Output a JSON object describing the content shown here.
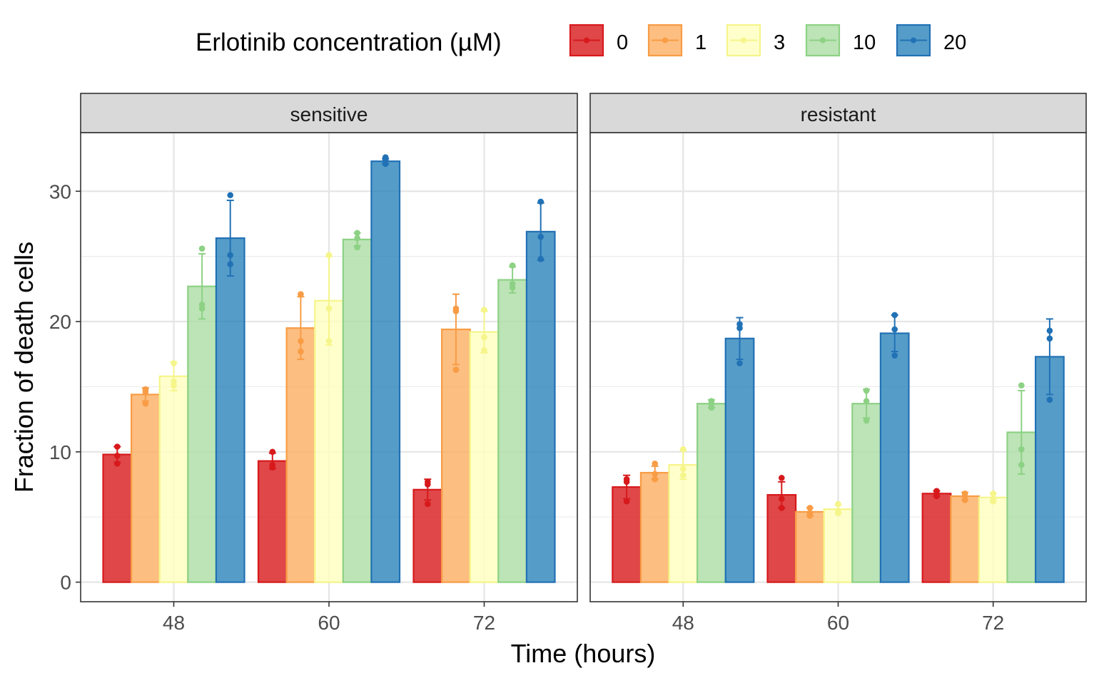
{
  "chart_data": {
    "type": "bar",
    "legend": {
      "title": "Erlotinib concentration (µM)",
      "position": "top",
      "entries": [
        "0",
        "1",
        "3",
        "10",
        "20"
      ]
    },
    "colors": [
      "#D7191C",
      "#FDAE61",
      "#FFFFBF",
      "#ABDDA4",
      "#2B83BA"
    ],
    "xlabel": "Time (hours)",
    "ylabel": "Fraction of death cells",
    "x_ticks": [
      "48",
      "60",
      "72"
    ],
    "y_ticks": [
      "0",
      "10",
      "20",
      "30"
    ],
    "ylim": [
      -1.5,
      34.5
    ],
    "grid": true,
    "panels": [
      {
        "label": "sensitive",
        "groups": [
          {
            "time": "48",
            "bars": [
              {
                "conc": "0",
                "mean": 9.8,
                "sd": 0.6,
                "points": [
                  10.4,
                  9.7,
                  9.1
                ]
              },
              {
                "conc": "1",
                "mean": 14.4,
                "sd": 0.5,
                "points": [
                  14.8,
                  14.6,
                  13.7
                ]
              },
              {
                "conc": "3",
                "mean": 15.8,
                "sd": 1.1,
                "points": [
                  16.8,
                  15.4,
                  15.1
                ]
              },
              {
                "conc": "10",
                "mean": 22.7,
                "sd": 2.5,
                "points": [
                  25.6,
                  21.3,
                  21.0
                ]
              },
              {
                "conc": "20",
                "mean": 26.4,
                "sd": 2.9,
                "points": [
                  29.7,
                  25.1,
                  24.4
                ]
              }
            ]
          },
          {
            "time": "60",
            "bars": [
              {
                "conc": "0",
                "mean": 9.3,
                "sd": 0.6,
                "points": [
                  10.0,
                  9.0,
                  8.8
                ]
              },
              {
                "conc": "1",
                "mean": 19.5,
                "sd": 2.4,
                "points": [
                  22.1,
                  18.5,
                  17.7
                ]
              },
              {
                "conc": "3",
                "mean": 21.6,
                "sd": 3.4,
                "points": [
                  25.1,
                  21.0,
                  18.5
                ]
              },
              {
                "conc": "10",
                "mean": 26.3,
                "sd": 0.5,
                "points": [
                  26.8,
                  26.4,
                  25.7
                ]
              },
              {
                "conc": "20",
                "mean": 32.3,
                "sd": 0.2,
                "points": [
                  32.6,
                  32.4,
                  32.1
                ]
              }
            ]
          },
          {
            "time": "72",
            "bars": [
              {
                "conc": "0",
                "mean": 7.1,
                "sd": 0.8,
                "points": [
                  7.7,
                  7.5,
                  6.0
                ]
              },
              {
                "conc": "1",
                "mean": 19.4,
                "sd": 2.7,
                "points": [
                  21.0,
                  20.8,
                  16.3
                ]
              },
              {
                "conc": "3",
                "mean": 19.2,
                "sd": 1.6,
                "points": [
                  20.9,
                  18.8,
                  17.8
                ]
              },
              {
                "conc": "10",
                "mean": 23.2,
                "sd": 1.0,
                "points": [
                  24.3,
                  22.6,
                  22.9
                ]
              },
              {
                "conc": "20",
                "mean": 26.9,
                "sd": 2.2,
                "points": [
                  29.2,
                  26.5,
                  24.8
                ]
              }
            ]
          }
        ]
      },
      {
        "label": "resistant",
        "groups": [
          {
            "time": "48",
            "bars": [
              {
                "conc": "0",
                "mean": 7.3,
                "sd": 0.9,
                "points": [
                  7.9,
                  7.7,
                  6.2
                ]
              },
              {
                "conc": "1",
                "mean": 8.4,
                "sd": 0.5,
                "points": [
                  9.1,
                  8.3,
                  7.9
                ]
              },
              {
                "conc": "3",
                "mean": 9.0,
                "sd": 1.1,
                "points": [
                  10.2,
                  8.7,
                  8.2
                ]
              },
              {
                "conc": "10",
                "mean": 13.7,
                "sd": 0.3,
                "points": [
                  13.9,
                  13.7,
                  13.4
                ]
              },
              {
                "conc": "20",
                "mean": 18.7,
                "sd": 1.6,
                "points": [
                  19.8,
                  19.5,
                  16.8
                ]
              }
            ]
          },
          {
            "time": "60",
            "bars": [
              {
                "conc": "0",
                "mean": 6.7,
                "sd": 1.0,
                "points": [
                  8.0,
                  6.4,
                  5.7
                ]
              },
              {
                "conc": "1",
                "mean": 5.4,
                "sd": 0.3,
                "points": [
                  5.7,
                  5.3,
                  5.1
                ]
              },
              {
                "conc": "3",
                "mean": 5.6,
                "sd": 0.3,
                "points": [
                  6.0,
                  5.5,
                  5.3
                ]
              },
              {
                "conc": "10",
                "mean": 13.7,
                "sd": 1.1,
                "points": [
                  14.7,
                  13.9,
                  12.4
                ]
              },
              {
                "conc": "20",
                "mean": 19.1,
                "sd": 1.4,
                "points": [
                  20.5,
                  19.4,
                  17.4
                ]
              }
            ]
          },
          {
            "time": "72",
            "bars": [
              {
                "conc": "0",
                "mean": 6.8,
                "sd": 0.2,
                "points": [
                  7.0,
                  6.8,
                  6.6
                ]
              },
              {
                "conc": "1",
                "mean": 6.6,
                "sd": 0.3,
                "points": [
                  6.8,
                  6.6,
                  6.3
                ]
              },
              {
                "conc": "3",
                "mean": 6.5,
                "sd": 0.3,
                "points": [
                  6.8,
                  6.4,
                  6.2
                ]
              },
              {
                "conc": "10",
                "mean": 11.5,
                "sd": 3.2,
                "points": [
                  15.1,
                  10.2,
                  9.0
                ]
              },
              {
                "conc": "20",
                "mean": 17.3,
                "sd": 2.9,
                "points": [
                  19.3,
                  18.7,
                  14.0
                ]
              }
            ]
          }
        ]
      }
    ]
  }
}
